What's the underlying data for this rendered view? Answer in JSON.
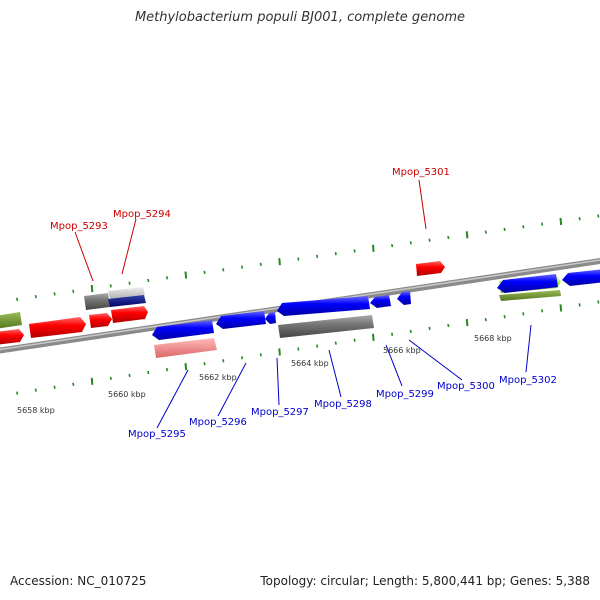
{
  "title": "Methylobacterium populi BJ001, complete genome",
  "footer": {
    "accession": "Accession: NC_010725",
    "summary": "Topology: circular; Length: 5,800,441 bp; Genes: 5,388"
  },
  "colors": {
    "forward_label": "#cc0000",
    "reverse_label": "#0000cc",
    "forward_gene": "#ff0000",
    "reverse_gene": "#0000ff",
    "tick": "#228822",
    "backbone": "#888888"
  },
  "kbp_labels": [
    "5658 kbp",
    "5660 kbp",
    "5662 kbp",
    "5664 kbp",
    "5666 kbp",
    "5668 kbp"
  ],
  "gene_labels_top": [
    "Mpop_5293",
    "Mpop_5294",
    "Mpop_5301"
  ],
  "gene_labels_bottom": [
    "Mpop_5295",
    "Mpop_5296",
    "Mpop_5297",
    "Mpop_5298",
    "Mpop_5299",
    "Mpop_5300",
    "Mpop_5302"
  ]
}
